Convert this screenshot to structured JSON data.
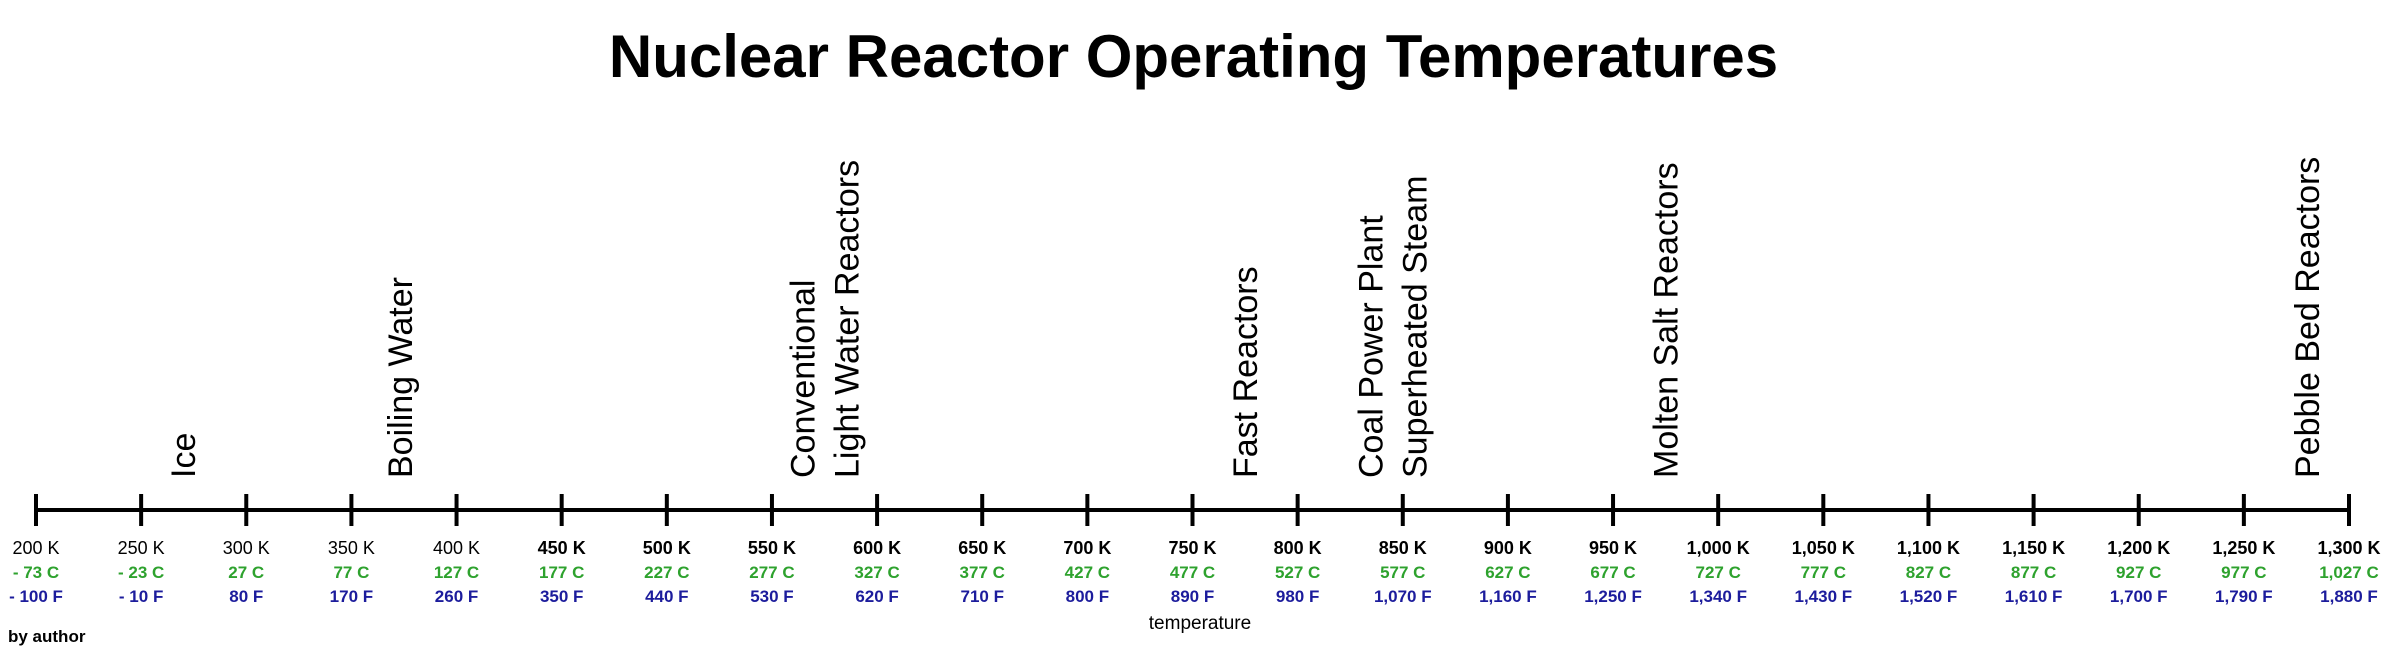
{
  "title": "Nuclear Reactor Operating Temperatures",
  "credit": "by author",
  "colors": {
    "celsius": "#2ea22e",
    "fahrenheit": "#1c1c9c",
    "axis": "#000000"
  },
  "chart_data": {
    "type": "timeline-scale",
    "xlabel": "temperature",
    "xlim": [
      200,
      1300
    ],
    "ticks": [
      {
        "k": 200,
        "k_label": "200 K",
        "c_label": "- 73 C",
        "f_label": "- 100 F"
      },
      {
        "k": 250,
        "k_label": "250 K",
        "c_label": "- 23 C",
        "f_label": "- 10 F"
      },
      {
        "k": 300,
        "k_label": "300 K",
        "c_label": "27 C",
        "f_label": "80 F"
      },
      {
        "k": 350,
        "k_label": "350 K",
        "c_label": "77 C",
        "f_label": "170 F"
      },
      {
        "k": 400,
        "k_label": "400 K",
        "c_label": "127 C",
        "f_label": "260 F"
      },
      {
        "k": 450,
        "k_label": "450 K",
        "c_label": "177 C",
        "f_label": "350 F"
      },
      {
        "k": 500,
        "k_label": "500 K",
        "c_label": "227 C",
        "f_label": "440 F"
      },
      {
        "k": 550,
        "k_label": "550 K",
        "c_label": "277 C",
        "f_label": "530 F"
      },
      {
        "k": 600,
        "k_label": "600 K",
        "c_label": "327 C",
        "f_label": "620 F"
      },
      {
        "k": 650,
        "k_label": "650 K",
        "c_label": "377 C",
        "f_label": "710 F"
      },
      {
        "k": 700,
        "k_label": "700 K",
        "c_label": "427 C",
        "f_label": "800 F"
      },
      {
        "k": 750,
        "k_label": "750 K",
        "c_label": "477 C",
        "f_label": "890 F"
      },
      {
        "k": 800,
        "k_label": "800 K",
        "c_label": "527 C",
        "f_label": "980 F"
      },
      {
        "k": 850,
        "k_label": "850 K",
        "c_label": "577 C",
        "f_label": "1,070 F"
      },
      {
        "k": 900,
        "k_label": "900 K",
        "c_label": "627 C",
        "f_label": "1,160 F"
      },
      {
        "k": 950,
        "k_label": "950 K",
        "c_label": "677 C",
        "f_label": "1,250 F"
      },
      {
        "k": 1000,
        "k_label": "1,000 K",
        "c_label": "727 C",
        "f_label": "1,340 F"
      },
      {
        "k": 1050,
        "k_label": "1,050 K",
        "c_label": "777 C",
        "f_label": "1,430 F"
      },
      {
        "k": 1100,
        "k_label": "1,100 K",
        "c_label": "827 C",
        "f_label": "1,520 F"
      },
      {
        "k": 1150,
        "k_label": "1,150 K",
        "c_label": "877 C",
        "f_label": "1,610 F"
      },
      {
        "k": 1200,
        "k_label": "1,200 K",
        "c_label": "927 C",
        "f_label": "1,700 F"
      },
      {
        "k": 1250,
        "k_label": "1,250 K",
        "c_label": "977 C",
        "f_label": "1,790 F"
      },
      {
        "k": 1300,
        "k_label": "1,300 K",
        "c_label": "1,027 C",
        "f_label": "1,880 F"
      }
    ],
    "annotations": [
      {
        "k": 270,
        "lines": [
          "Ice"
        ]
      },
      {
        "k": 373,
        "lines": [
          "Boiling Water"
        ]
      },
      {
        "k": 575,
        "lines": [
          "Conventional",
          "Light Water Reactors"
        ]
      },
      {
        "k": 775,
        "lines": [
          "Fast Reactors"
        ]
      },
      {
        "k": 845,
        "lines": [
          "Coal Power Plant",
          "Superheated Steam"
        ]
      },
      {
        "k": 975,
        "lines": [
          "Molten Salt Reactors"
        ]
      },
      {
        "k": 1280,
        "lines": [
          "Pebble Bed Reactors"
        ]
      }
    ]
  }
}
